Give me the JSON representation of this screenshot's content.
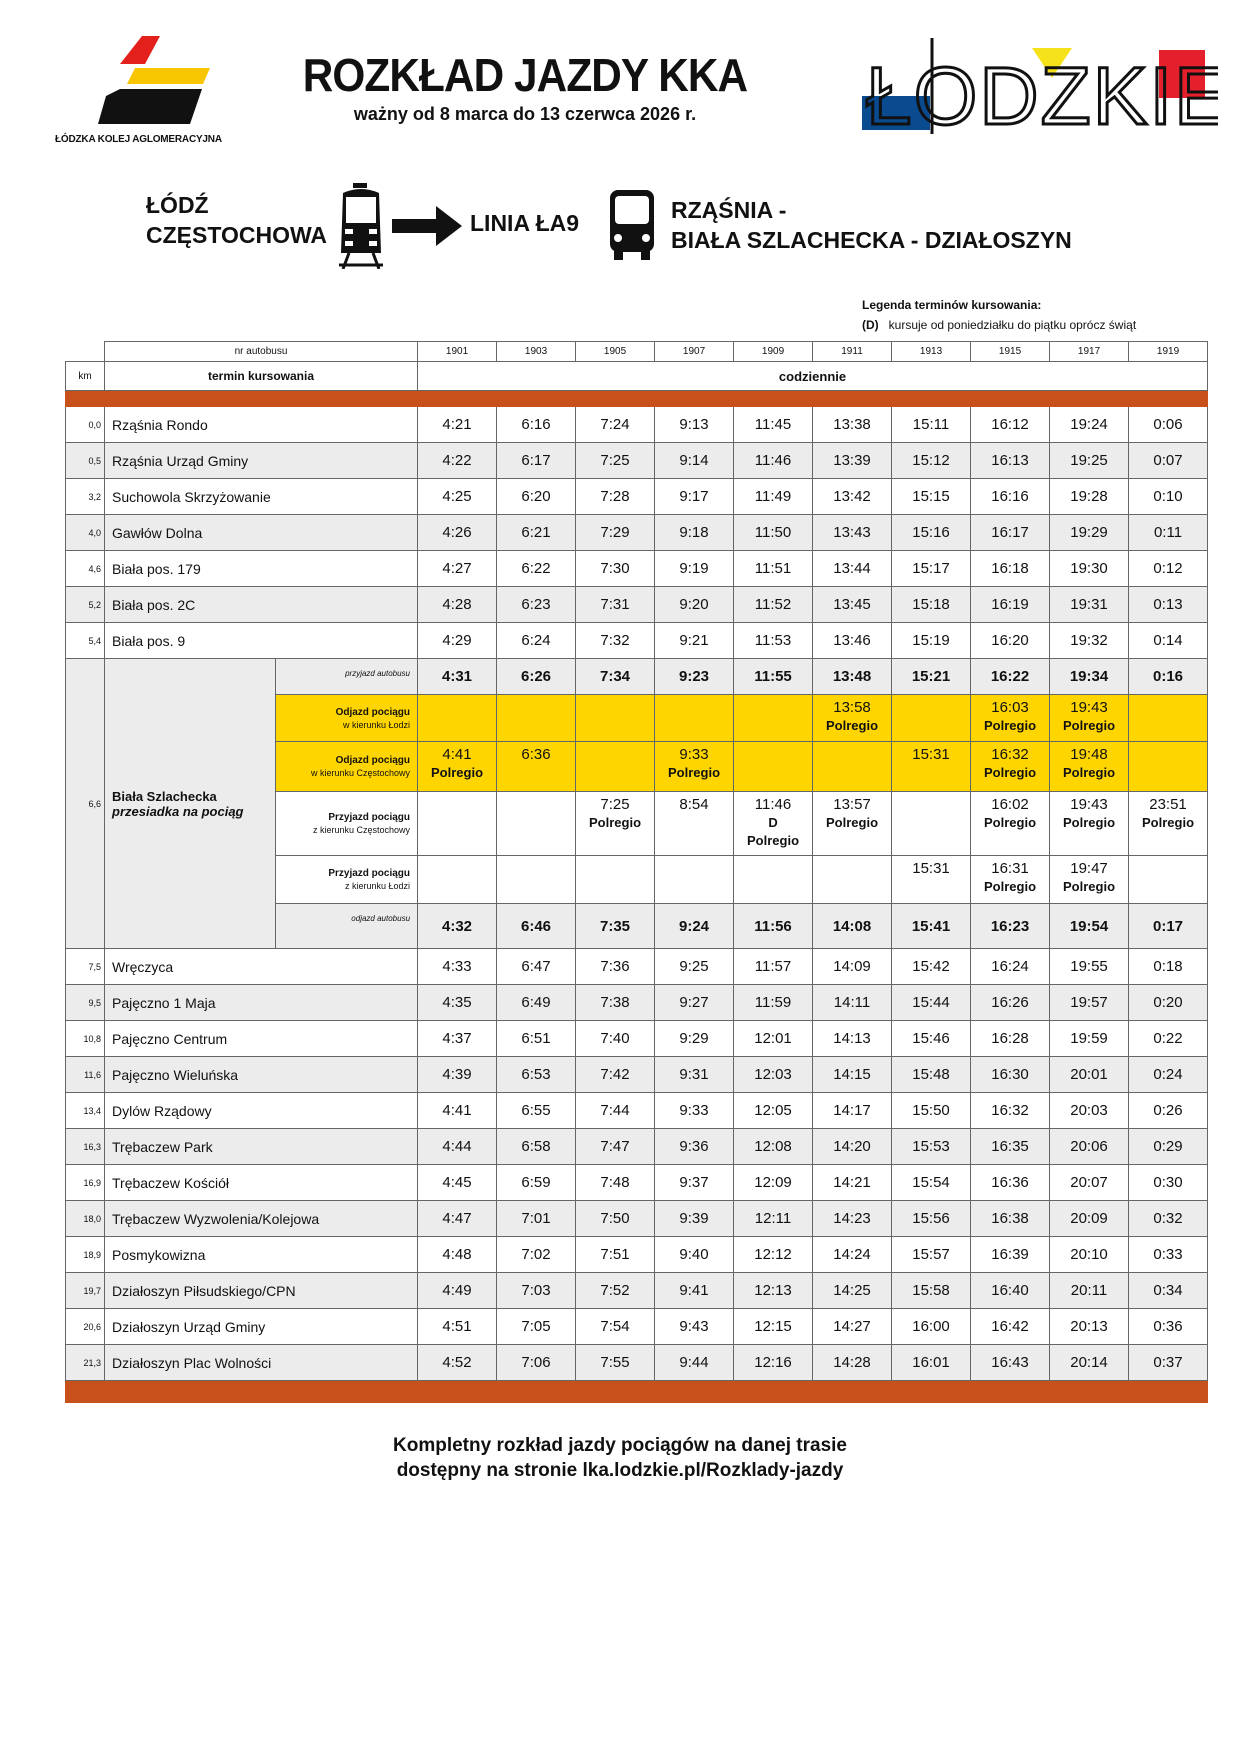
{
  "header": {
    "title": "ROZKŁAD JAZDY KKA",
    "subtitle": "ważny od 8 marca do 13 czerwca 2026 r.",
    "operator": "ŁÓDZKA KOLEJ AGLOMERACYJNA",
    "region_logo": "ŁÓDZKIE"
  },
  "route": {
    "from_line1": "ŁÓDŹ",
    "from_line2": "CZĘSTOCHOWA",
    "line": "LINIA ŁA9",
    "to_line1": "RZĄŚNIA -",
    "to_line2": "BIAŁA SZLACHECKA - DZIAŁOSZYN",
    "icons": [
      "train-icon",
      "arrow-right-icon",
      "bus-icon"
    ]
  },
  "legend": {
    "title": "Legenda terminów kursowania:",
    "code": "(D)",
    "text": "kursuje od poniedziałku do piątku oprócz świąt"
  },
  "colors": {
    "orange": "#c8501a",
    "yellow": "#ffd500",
    "gray": "#ececec"
  },
  "table": {
    "bus_no_label": "nr autobusu",
    "km_label": "km",
    "term_label": "termin kursowania",
    "term_value": "codziennie",
    "bus_numbers": [
      "1901",
      "1903",
      "1905",
      "1907",
      "1909",
      "1911",
      "1913",
      "1915",
      "1917",
      "1919"
    ],
    "stops_before": [
      {
        "km": "0,0",
        "name": "Rząśnia Rondo",
        "times": [
          "4:21",
          "6:16",
          "7:24",
          "9:13",
          "11:45",
          "13:38",
          "15:11",
          "16:12",
          "19:24",
          "0:06"
        ]
      },
      {
        "km": "0,5",
        "name": "Rząśnia Urząd Gminy",
        "times": [
          "4:22",
          "6:17",
          "7:25",
          "9:14",
          "11:46",
          "13:39",
          "15:12",
          "16:13",
          "19:25",
          "0:07"
        ]
      },
      {
        "km": "3,2",
        "name": "Suchowola Skrzyżowanie",
        "times": [
          "4:25",
          "6:20",
          "7:28",
          "9:17",
          "11:49",
          "13:42",
          "15:15",
          "16:16",
          "19:28",
          "0:10"
        ]
      },
      {
        "km": "4,0",
        "name": "Gawłów Dolna",
        "times": [
          "4:26",
          "6:21",
          "7:29",
          "9:18",
          "11:50",
          "13:43",
          "15:16",
          "16:17",
          "19:29",
          "0:11"
        ]
      },
      {
        "km": "4,6",
        "name": "Biała pos. 179",
        "times": [
          "4:27",
          "6:22",
          "7:30",
          "9:19",
          "11:51",
          "13:44",
          "15:17",
          "16:18",
          "19:30",
          "0:12"
        ]
      },
      {
        "km": "5,2",
        "name": "Biała pos. 2C",
        "times": [
          "4:28",
          "6:23",
          "7:31",
          "9:20",
          "11:52",
          "13:45",
          "15:18",
          "16:19",
          "19:31",
          "0:13"
        ]
      },
      {
        "km": "5,4",
        "name": "Biała pos. 9",
        "times": [
          "4:29",
          "6:24",
          "7:32",
          "9:21",
          "11:53",
          "13:46",
          "15:19",
          "16:20",
          "19:32",
          "0:14"
        ]
      }
    ],
    "transfer": {
      "km": "6,6",
      "name": "Biała Szlachecka",
      "note": "przesiadka na pociąg",
      "bus_arrival": {
        "label": "przyjazd autobusu",
        "times": [
          "4:31",
          "6:26",
          "7:34",
          "9:23",
          "11:55",
          "13:48",
          "15:21",
          "16:22",
          "19:34",
          "0:16"
        ]
      },
      "train_dep_lodz": {
        "label1": "Odjazd pociągu",
        "label2": "w kierunku Łodzi",
        "times": [
          "",
          "",
          "",
          "",
          "",
          "13:58\nPolregio",
          "",
          "16:03\nPolregio",
          "19:43\nPolregio",
          ""
        ]
      },
      "train_dep_czest": {
        "label1": "Odjazd pociągu",
        "label2": "w kierunku Częstochowy",
        "times": [
          "4:41\nPolregio",
          "6:36",
          "",
          "9:33\nPolregio",
          "",
          "",
          "15:31",
          "16:32\nPolregio",
          "19:48\nPolregio",
          ""
        ]
      },
      "train_arr_czest": {
        "label1": "Przyjazd pociągu",
        "label2": "z kierunku Częstochowy",
        "times": [
          "",
          "",
          "7:25\nPolregio",
          "8:54",
          "11:46\nD\nPolregio",
          "13:57\nPolregio",
          "",
          "16:02\nPolregio",
          "19:43\nPolregio",
          "23:51\nPolregio"
        ]
      },
      "train_arr_lodz": {
        "label1": "Przyjazd pociągu",
        "label2": "z kierunku Łodzi",
        "times": [
          "",
          "",
          "",
          "",
          "",
          "",
          "15:31",
          "16:31\nPolregio",
          "19:47\nPolregio",
          ""
        ]
      },
      "bus_departure": {
        "label": "odjazd autobusu",
        "times": [
          "4:32",
          "6:46",
          "7:35",
          "9:24",
          "11:56",
          "14:08",
          "15:41",
          "16:23",
          "19:54",
          "0:17"
        ]
      }
    },
    "stops_after": [
      {
        "km": "7,5",
        "name": "Wręczyca",
        "times": [
          "4:33",
          "6:47",
          "7:36",
          "9:25",
          "11:57",
          "14:09",
          "15:42",
          "16:24",
          "19:55",
          "0:18"
        ]
      },
      {
        "km": "9,5",
        "name": "Pajęczno 1 Maja",
        "times": [
          "4:35",
          "6:49",
          "7:38",
          "9:27",
          "11:59",
          "14:11",
          "15:44",
          "16:26",
          "19:57",
          "0:20"
        ]
      },
      {
        "km": "10,8",
        "name": "Pajęczno Centrum",
        "times": [
          "4:37",
          "6:51",
          "7:40",
          "9:29",
          "12:01",
          "14:13",
          "15:46",
          "16:28",
          "19:59",
          "0:22"
        ]
      },
      {
        "km": "11,6",
        "name": "Pajęczno Wieluńska",
        "times": [
          "4:39",
          "6:53",
          "7:42",
          "9:31",
          "12:03",
          "14:15",
          "15:48",
          "16:30",
          "20:01",
          "0:24"
        ]
      },
      {
        "km": "13,4",
        "name": "Dylów Rządowy",
        "times": [
          "4:41",
          "6:55",
          "7:44",
          "9:33",
          "12:05",
          "14:17",
          "15:50",
          "16:32",
          "20:03",
          "0:26"
        ]
      },
      {
        "km": "16,3",
        "name": "Trębaczew Park",
        "times": [
          "4:44",
          "6:58",
          "7:47",
          "9:36",
          "12:08",
          "14:20",
          "15:53",
          "16:35",
          "20:06",
          "0:29"
        ]
      },
      {
        "km": "16,9",
        "name": "Trębaczew Kościół",
        "times": [
          "4:45",
          "6:59",
          "7:48",
          "9:37",
          "12:09",
          "14:21",
          "15:54",
          "16:36",
          "20:07",
          "0:30"
        ]
      },
      {
        "km": "18,0",
        "name": "Trębaczew Wyzwolenia/Kolejowa",
        "times": [
          "4:47",
          "7:01",
          "7:50",
          "9:39",
          "12:11",
          "14:23",
          "15:56",
          "16:38",
          "20:09",
          "0:32"
        ]
      },
      {
        "km": "18,9",
        "name": "Posmykowizna",
        "times": [
          "4:48",
          "7:02",
          "7:51",
          "9:40",
          "12:12",
          "14:24",
          "15:57",
          "16:39",
          "20:10",
          "0:33"
        ]
      },
      {
        "km": "19,7",
        "name": "Działoszyn Piłsudskiego/CPN",
        "times": [
          "4:49",
          "7:03",
          "7:52",
          "9:41",
          "12:13",
          "14:25",
          "15:58",
          "16:40",
          "20:11",
          "0:34"
        ]
      },
      {
        "km": "20,6",
        "name": "Działoszyn Urząd Gminy",
        "times": [
          "4:51",
          "7:05",
          "7:54",
          "9:43",
          "12:15",
          "14:27",
          "16:00",
          "16:42",
          "20:13",
          "0:36"
        ]
      },
      {
        "km": "21,3",
        "name": "Działoszyn Plac Wolności",
        "times": [
          "4:52",
          "7:06",
          "7:55",
          "9:44",
          "12:16",
          "14:28",
          "16:01",
          "16:43",
          "20:14",
          "0:37"
        ]
      }
    ]
  },
  "footer": {
    "line1": "Kompletny rozkład jazdy pociągów na danej trasie",
    "line2": "dostępny na stronie lka.lodzkie.pl/Rozklady-jazdy"
  }
}
